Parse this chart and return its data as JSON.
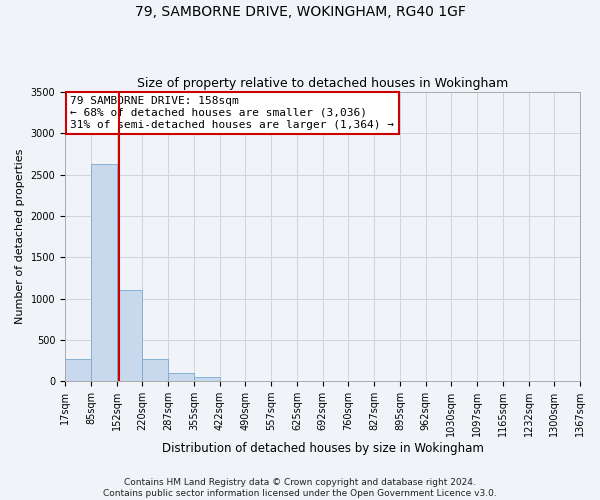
{
  "title_line1": "79, SAMBORNE DRIVE, WOKINGHAM, RG40 1GF",
  "title_line2": "Size of property relative to detached houses in Wokingham",
  "xlabel": "Distribution of detached houses by size in Wokingham",
  "ylabel": "Number of detached properties",
  "footnote": "Contains HM Land Registry data © Crown copyright and database right 2024.\nContains public sector information licensed under the Open Government Licence v3.0.",
  "annotation_line1": "79 SAMBORNE DRIVE: 158sqm",
  "annotation_line2": "← 68% of detached houses are smaller (3,036)",
  "annotation_line3": "31% of semi-detached houses are larger (1,364) →",
  "property_size": 158,
  "bar_color": "#c8d8ed",
  "bar_edge_color": "#7aaace",
  "redline_color": "#cc0000",
  "grid_color": "#ccd5e0",
  "background_color": "#f0f4f8",
  "bin_edges": [
    17,
    85,
    152,
    220,
    287,
    355,
    422,
    490,
    557,
    625,
    692,
    760,
    827,
    895,
    962,
    1030,
    1097,
    1165,
    1232,
    1300,
    1367
  ],
  "bin_counts": [
    270,
    2630,
    1100,
    270,
    100,
    55,
    0,
    0,
    0,
    0,
    0,
    0,
    0,
    0,
    0,
    0,
    0,
    0,
    0,
    0
  ],
  "ylim": [
    0,
    3500
  ],
  "yticks": [
    0,
    500,
    1000,
    1500,
    2000,
    2500,
    3000,
    3500
  ],
  "annotation_box_facecolor": "#ffffff",
  "annotation_box_edge": "#cc0000",
  "title_fontsize": 10,
  "subtitle_fontsize": 9,
  "tick_fontsize": 7,
  "ylabel_fontsize": 8,
  "xlabel_fontsize": 8.5,
  "footnote_fontsize": 6.5,
  "annotation_fontsize": 8
}
